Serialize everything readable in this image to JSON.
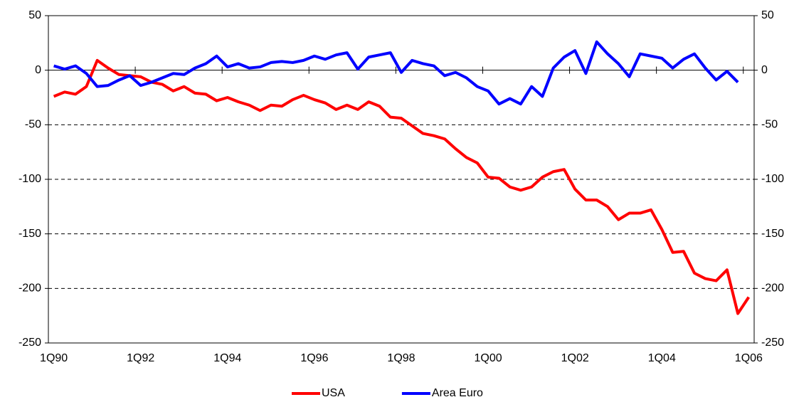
{
  "chart_data": {
    "type": "line",
    "categories": [
      "1Q90",
      null,
      null,
      null,
      null,
      null,
      null,
      null,
      "1Q92",
      null,
      null,
      null,
      null,
      null,
      null,
      null,
      "1Q94",
      null,
      null,
      null,
      null,
      null,
      null,
      null,
      "1Q96",
      null,
      null,
      null,
      null,
      null,
      null,
      null,
      "1Q98",
      null,
      null,
      null,
      null,
      null,
      null,
      null,
      "1Q00",
      null,
      null,
      null,
      null,
      null,
      null,
      null,
      "1Q02",
      null,
      null,
      null,
      null,
      null,
      null,
      null,
      "1Q04",
      null,
      null,
      null,
      null,
      null,
      null,
      null,
      "1Q06"
    ],
    "series": [
      {
        "name": "USA",
        "color": "#ff0000",
        "values": [
          -24,
          -20,
          -22,
          -15,
          9,
          2,
          -4,
          -5,
          -6,
          -11,
          -13,
          -19,
          -15,
          -21,
          -22,
          -28,
          -25,
          -29,
          -32,
          -37,
          -32,
          -33,
          -27,
          -23,
          -27,
          -30,
          -36,
          -32,
          -36,
          -29,
          -33,
          -43,
          -44,
          -51,
          -58,
          -60,
          -63,
          -72,
          -80,
          -85,
          -98,
          -99,
          -107,
          -110,
          -107,
          -98,
          -93,
          -91,
          -109,
          -119,
          -119,
          -125,
          -137,
          -131,
          -131,
          -128,
          -146,
          -167,
          -166,
          -186,
          -191,
          -193,
          -183,
          -223,
          -208
        ]
      },
      {
        "name": "Area Euro",
        "color": "#0000ff",
        "values": [
          4,
          1,
          4,
          -3,
          -15,
          -14,
          -9,
          -5,
          -14,
          -11,
          -7,
          -3,
          -4,
          2,
          6,
          13,
          3,
          6,
          2,
          3,
          7,
          8,
          7,
          9,
          13,
          10,
          14,
          16,
          1,
          12,
          14,
          16,
          -2,
          9,
          6,
          4,
          -5,
          -2,
          -7,
          -15,
          -19,
          -31,
          -26,
          -31,
          -15,
          -24,
          2,
          12,
          18,
          -3,
          26,
          15,
          6,
          -6,
          15,
          13,
          11,
          2,
          10,
          15,
          2,
          -9,
          -1,
          -11,
          null
        ]
      }
    ],
    "ylim": [
      -250,
      50
    ],
    "yticks": [
      -250,
      -200,
      -150,
      -100,
      -50,
      0,
      50
    ],
    "y2lim": [
      -250,
      50
    ],
    "y2ticks": [
      -250,
      -200,
      -150,
      -100,
      -50,
      0,
      50
    ],
    "grid": true,
    "legend": "bottom"
  }
}
